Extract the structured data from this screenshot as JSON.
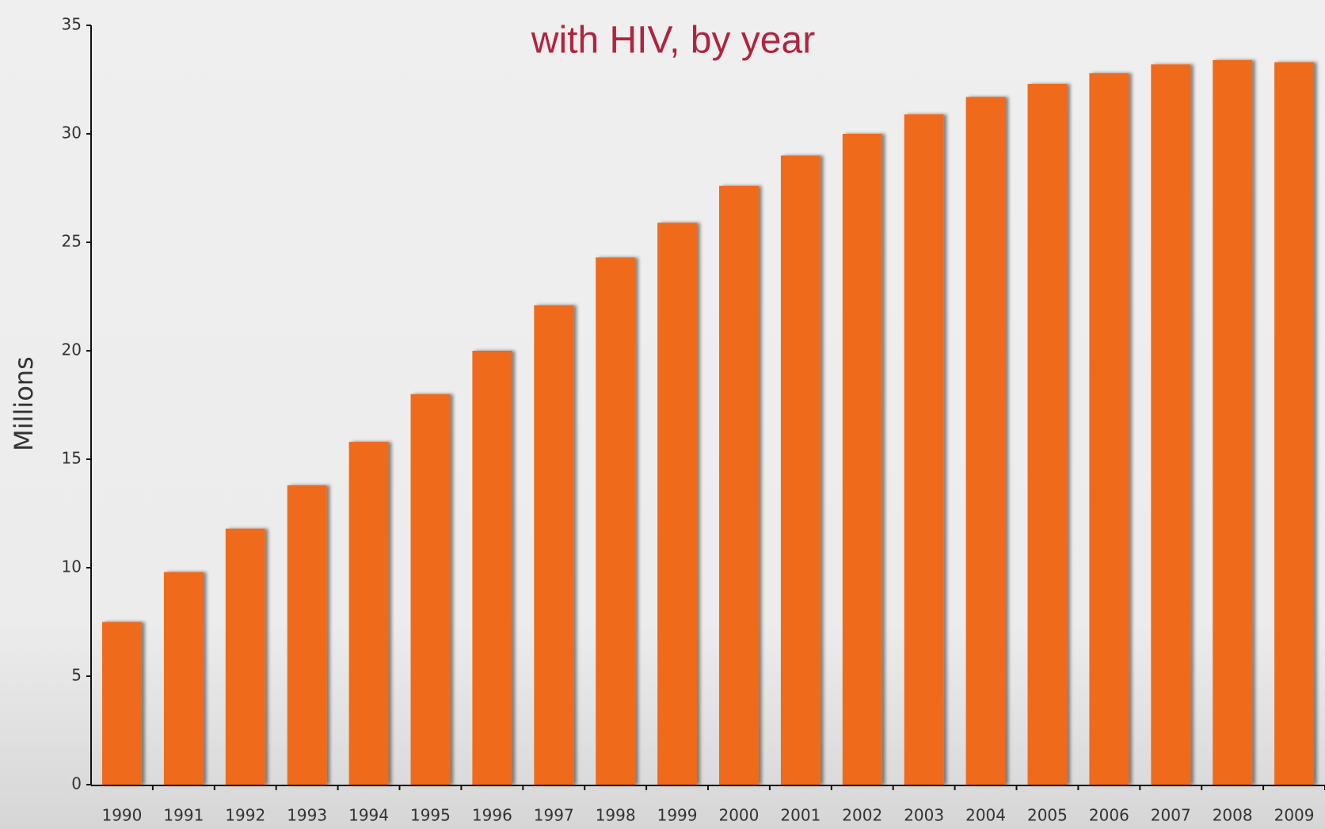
{
  "chart_data": {
    "type": "bar",
    "title": "with HIV, by year",
    "y_label": "Millions",
    "categories": [
      "1990",
      "1991",
      "1992",
      "1993",
      "1994",
      "1995",
      "1996",
      "1997",
      "1998",
      "1999",
      "2000",
      "2001",
      "2002",
      "2003",
      "2004",
      "2005",
      "2006",
      "2007",
      "2008",
      "2009"
    ],
    "values": [
      7.5,
      9.8,
      11.8,
      13.8,
      15.8,
      18.0,
      20.0,
      22.1,
      24.3,
      25.9,
      27.6,
      29.0,
      30.0,
      30.9,
      31.7,
      32.3,
      32.8,
      33.2,
      33.4,
      33.3
    ],
    "color": "#f06a1e",
    "ylim": [
      0,
      35
    ],
    "yticks": [
      0,
      5,
      10,
      15,
      20,
      25,
      30,
      35
    ],
    "grid": false
  }
}
